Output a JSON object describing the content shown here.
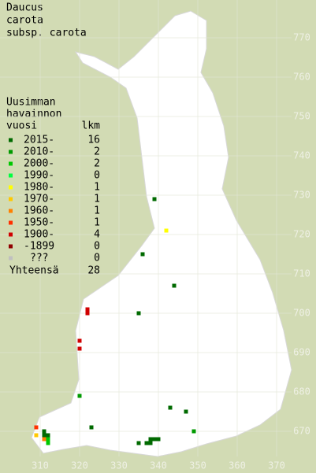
{
  "title": [
    "Daucus",
    "carota",
    "subsp. carota"
  ],
  "legend": {
    "header": [
      "Uusimman",
      "havainnon"
    ],
    "col_year": "vuosi",
    "col_count": "lkm",
    "rows": [
      {
        "label": "2015-",
        "count": 16,
        "color": "#006a00"
      },
      {
        "label": "2010-",
        "count": 2,
        "color": "#009a00"
      },
      {
        "label": "2000-",
        "count": 2,
        "color": "#00c800"
      },
      {
        "label": "1990-",
        "count": 0,
        "color": "#00ff40"
      },
      {
        "label": "1980-",
        "count": 1,
        "color": "#ffff00"
      },
      {
        "label": "1970-",
        "count": 1,
        "color": "#ffc800"
      },
      {
        "label": "1960-",
        "count": 1,
        "color": "#ff8000"
      },
      {
        "label": "1950-",
        "count": 1,
        "color": "#ff3000"
      },
      {
        "label": "1900-",
        "count": 4,
        "color": "#d00000"
      },
      {
        "label": "-1899",
        "count": 0,
        "color": "#900000"
      },
      {
        "label": "???",
        "count": 0,
        "color": "#c0c0c0"
      }
    ],
    "total_label": "Yhteensä",
    "total": 28
  },
  "map": {
    "xticks": [
      310,
      320,
      330,
      340,
      350,
      360,
      370
    ],
    "yticks": [
      670,
      680,
      690,
      700,
      710,
      720,
      730,
      740,
      750,
      760,
      770
    ],
    "points": [
      {
        "x": 339,
        "y": 729,
        "period": 0
      },
      {
        "x": 336,
        "y": 715,
        "period": 0
      },
      {
        "x": 344,
        "y": 707,
        "period": 0
      },
      {
        "x": 335,
        "y": 700,
        "period": 0
      },
      {
        "x": 320,
        "y": 679,
        "period": 1
      },
      {
        "x": 343,
        "y": 676,
        "period": 0
      },
      {
        "x": 347,
        "y": 675,
        "period": 0
      },
      {
        "x": 323,
        "y": 671,
        "period": 0
      },
      {
        "x": 349,
        "y": 670,
        "period": 1
      },
      {
        "x": 335,
        "y": 667,
        "period": 0
      },
      {
        "x": 337,
        "y": 667,
        "period": 0
      },
      {
        "x": 338,
        "y": 668,
        "period": 0
      },
      {
        "x": 339,
        "y": 668,
        "period": 0
      },
      {
        "x": 340,
        "y": 668,
        "period": 0
      },
      {
        "x": 338,
        "y": 667,
        "period": 0
      },
      {
        "x": 311,
        "y": 670,
        "period": 0
      },
      {
        "x": 312,
        "y": 669,
        "period": 0
      },
      {
        "x": 311,
        "y": 669,
        "period": 0
      },
      {
        "x": 312,
        "y": 668,
        "period": 2
      },
      {
        "x": 312,
        "y": 667,
        "period": 2
      },
      {
        "x": 342,
        "y": 721,
        "period": 4
      },
      {
        "x": 322,
        "y": 701,
        "period": 8
      },
      {
        "x": 322,
        "y": 700,
        "period": 8
      },
      {
        "x": 320,
        "y": 693,
        "period": 8
      },
      {
        "x": 320,
        "y": 691,
        "period": 8
      },
      {
        "x": 309,
        "y": 671,
        "period": 7
      },
      {
        "x": 309,
        "y": 669,
        "period": 5
      },
      {
        "x": 311,
        "y": 668,
        "period": 6
      }
    ]
  }
}
